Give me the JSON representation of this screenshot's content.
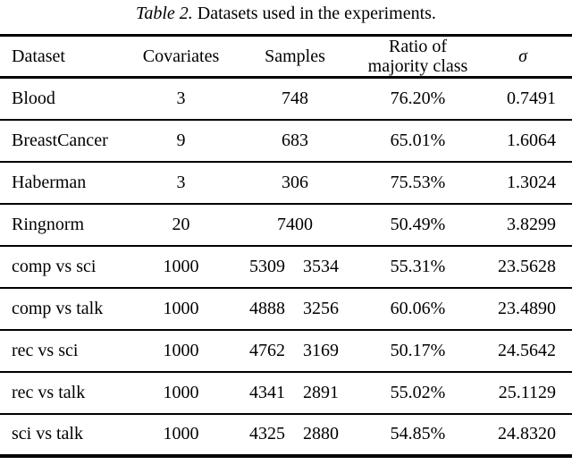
{
  "caption": {
    "label": "Table 2.",
    "text": "Datasets used in the experiments."
  },
  "table": {
    "headers": {
      "dataset": "Dataset",
      "covariates": "Covariates",
      "samples": "Samples",
      "ratio_line1": "Ratio of",
      "ratio_line2": "majority class",
      "sigma": "σ"
    },
    "rows": [
      {
        "dataset": "Blood",
        "covariates": "3",
        "samples": "748",
        "samples2": "",
        "ratio": "76.20%",
        "sigma": "0.7491"
      },
      {
        "dataset": "BreastCancer",
        "covariates": "9",
        "samples": "683",
        "samples2": "",
        "ratio": "65.01%",
        "sigma": "1.6064"
      },
      {
        "dataset": "Haberman",
        "covariates": "3",
        "samples": "306",
        "samples2": "",
        "ratio": "75.53%",
        "sigma": "1.3024"
      },
      {
        "dataset": "Ringnorm",
        "covariates": "20",
        "samples": "7400",
        "samples2": "",
        "ratio": "50.49%",
        "sigma": "3.8299"
      },
      {
        "dataset": "comp vs sci",
        "covariates": "1000",
        "samples": "5309",
        "samples2": "3534",
        "ratio": "55.31%",
        "sigma": "23.5628"
      },
      {
        "dataset": "comp vs talk",
        "covariates": "1000",
        "samples": "4888",
        "samples2": "3256",
        "ratio": "60.06%",
        "sigma": "23.4890"
      },
      {
        "dataset": "rec vs sci",
        "covariates": "1000",
        "samples": "4762",
        "samples2": "3169",
        "ratio": "50.17%",
        "sigma": "24.5642"
      },
      {
        "dataset": "rec vs talk",
        "covariates": "1000",
        "samples": "4341",
        "samples2": "2891",
        "ratio": "55.02%",
        "sigma": "25.1129"
      },
      {
        "dataset": "sci vs talk",
        "covariates": "1000",
        "samples": "4325",
        "samples2": "2880",
        "ratio": "54.85%",
        "sigma": "24.8320"
      }
    ]
  }
}
